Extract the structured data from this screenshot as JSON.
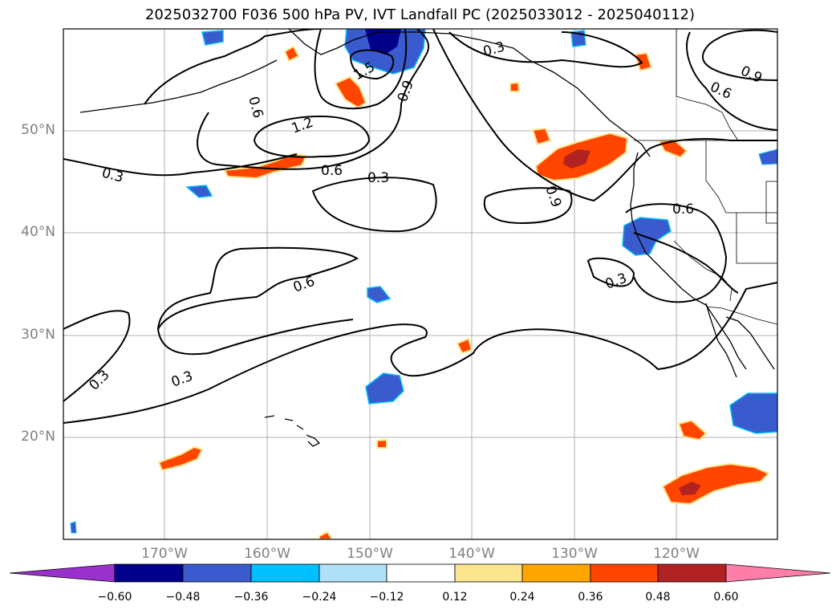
{
  "title": "2025032700 F036 500 hPa PV, IVT Landfall PC (2025033012 - 2025040112)",
  "latitude_labels": [
    "50°N",
    "40°N",
    "30°N",
    "20°N"
  ],
  "longitude_labels": [
    "170°W",
    "160°W",
    "150°W",
    "140°W",
    "130°W",
    "120°W"
  ],
  "contour_labels": [
    "0.3",
    "0.6",
    "0.9",
    "1.2",
    "1.5"
  ],
  "colorbar": {
    "ticks": [
      "−0.60",
      "−0.48",
      "−0.36",
      "−0.24",
      "−0.12",
      "0.12",
      "0.24",
      "0.36",
      "0.48",
      "0.60"
    ],
    "colors": [
      "#9932cc",
      "#00008b",
      "#3a5bcd",
      "#00bfff",
      "#aee0f8",
      "#ffffff",
      "#fbe58f",
      "#ffa500",
      "#ff4500",
      "#b22222",
      "#ff7fa8"
    ]
  },
  "colors": {
    "grid": "#b0b0b0",
    "axis_label": "#808080",
    "coastline": "#000000",
    "contour": "#000000"
  }
}
